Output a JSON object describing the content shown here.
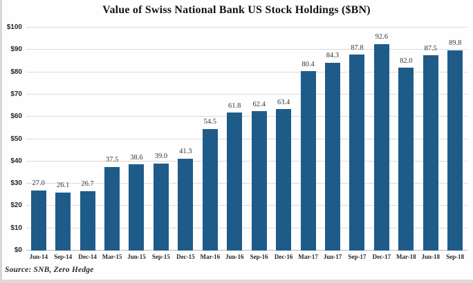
{
  "chart_data": {
    "type": "bar",
    "title": "Value of Swiss National Bank US Stock Holdings ($BN)",
    "categories": [
      "Jun-14",
      "Sep-14",
      "Dec-14",
      "Mar-15",
      "Jun-15",
      "Sep-15",
      "Dec-15",
      "Mar-16",
      "Jun-16",
      "Sep-16",
      "Dec-16",
      "Mar-17",
      "Jun-17",
      "Sep-17",
      "Dec-17",
      "Mar-18",
      "Jun-18",
      "Sep-18"
    ],
    "values": [
      27.0,
      26.1,
      26.7,
      37.5,
      38.6,
      39.0,
      41.3,
      54.5,
      61.8,
      62.4,
      63.4,
      80.4,
      84.3,
      87.8,
      92.6,
      82.0,
      87.5,
      89.8
    ],
    "value_labels": [
      "27.0",
      "26.1",
      "26.7",
      "37.5",
      "38.6",
      "39.0",
      "41.3",
      "54.5",
      "61.8",
      "62.4",
      "63.4",
      "80.4",
      "84.3",
      "87.8",
      "92.6",
      "82.0",
      "87.5",
      "89.8"
    ],
    "xlabel": "",
    "ylabel": "",
    "ylim": [
      0,
      100
    ],
    "y_ticks": [
      {
        "label": "$0",
        "value": 0
      },
      {
        "label": "$10",
        "value": 10
      },
      {
        "label": "$20",
        "value": 20
      },
      {
        "label": "$30",
        "value": 30
      },
      {
        "label": "$40",
        "value": 40
      },
      {
        "label": "$50",
        "value": 50
      },
      {
        "label": "$60",
        "value": 60
      },
      {
        "label": "$70",
        "value": 70
      },
      {
        "label": "$80",
        "value": 80
      },
      {
        "label": "$90",
        "value": 90
      },
      {
        "label": "$100",
        "value": 100
      }
    ],
    "grid": true,
    "legend": false,
    "bar_color": "#1f5b89",
    "gridline_color": "#dadada",
    "source": "Source: SNB, Zero Hedge"
  }
}
